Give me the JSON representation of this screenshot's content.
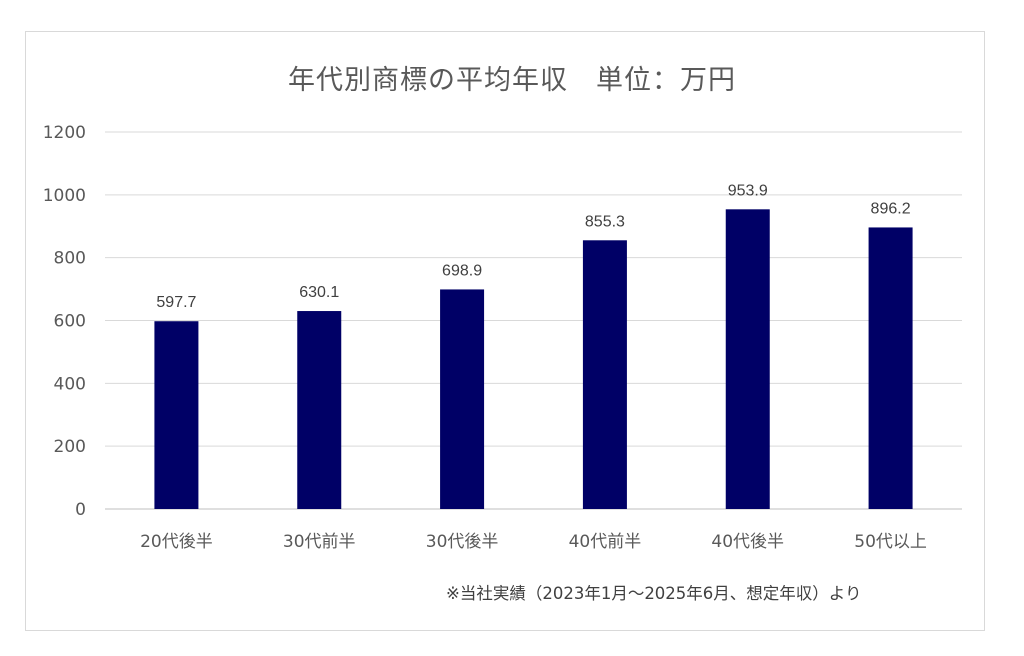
{
  "chart_data": {
    "type": "bar",
    "title": "年代別商標の平均年収　単位：万円",
    "categories": [
      "20代後半",
      "30代前半",
      "30代後半",
      "40代前半",
      "40代後半",
      "50代以上"
    ],
    "values": [
      597.7,
      630.1,
      698.9,
      855.3,
      953.9,
      896.2
    ],
    "value_labels": [
      "597.7",
      "630.1",
      "698.9",
      "855.3",
      "953.9",
      "896.2"
    ],
    "yticks": [
      "0",
      "200",
      "400",
      "600",
      "800",
      "1000",
      "1200"
    ],
    "ytick_values": [
      0,
      200,
      400,
      600,
      800,
      1000,
      1200
    ],
    "ylim": [
      0,
      1200
    ],
    "grid": true,
    "bar_color": "#000066",
    "note": "※当社実績（2023年1月～2025年6月、想定年収）より"
  }
}
